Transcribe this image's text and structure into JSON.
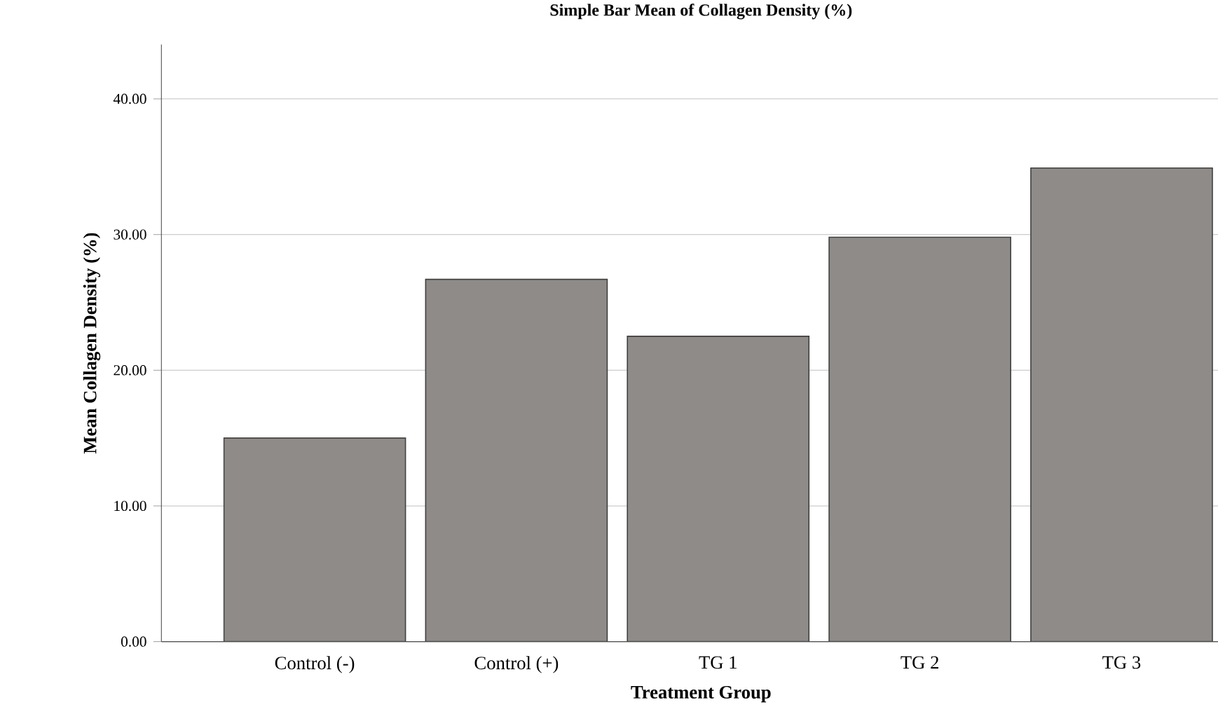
{
  "chart_data": {
    "type": "bar",
    "title": "Simple Bar Mean of Collagen Density (%)",
    "xlabel": "Treatment Group",
    "ylabel": "Mean Collagen Density (%)",
    "categories": [
      "Control (-)",
      "Control (+)",
      "TG 1",
      "TG 2",
      "TG 3"
    ],
    "values": [
      15.0,
      26.7,
      22.5,
      29.8,
      34.9
    ],
    "color": "#8f8b89",
    "ylim": [
      0,
      44
    ],
    "yticks": [
      {
        "value": 0,
        "label": "0.00"
      },
      {
        "value": 10,
        "label": "10.00"
      },
      {
        "value": 20,
        "label": "20.00"
      },
      {
        "value": 30,
        "label": "30.00"
      },
      {
        "value": 40,
        "label": "40.00"
      }
    ],
    "grid": "y"
  }
}
